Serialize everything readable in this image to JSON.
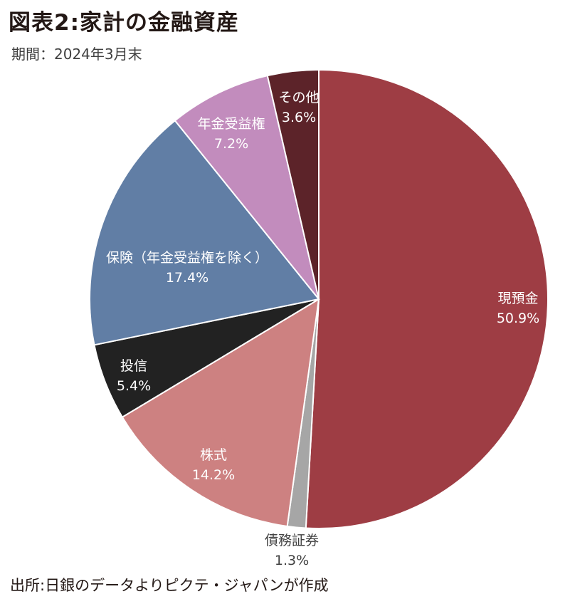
{
  "header": {
    "title": "図表2:家計の金融資産",
    "period": "期間：2024年3月末"
  },
  "footer": {
    "source": "出所:日銀のデータよりピクテ・ジャパンが作成"
  },
  "chart_data": {
    "type": "pie",
    "title": "図表2:家計の金融資産",
    "start": "12 o'clock",
    "direction": "clockwise",
    "slices": [
      {
        "name": "現預金",
        "label": "50.9%",
        "value": 50.9,
        "color": "#9e3d44",
        "text_color": "#ffffff"
      },
      {
        "name": "債務証券",
        "label": "1.3%",
        "value": 1.3,
        "color": "#a6a6a6",
        "text_color": "#404040"
      },
      {
        "name": "株式",
        "label": "14.2%",
        "value": 14.2,
        "color": "#cd8181",
        "text_color": "#ffffff"
      },
      {
        "name": "投信",
        "label": "5.4%",
        "value": 5.4,
        "color": "#222222",
        "text_color": "#ffffff"
      },
      {
        "name": "保険（年金受益権を除く）",
        "label": "17.4%",
        "value": 17.4,
        "color": "#617ea5",
        "text_color": "#ffffff"
      },
      {
        "name": "年金受益権",
        "label": "7.2%",
        "value": 7.2,
        "color": "#c28cbd",
        "text_color": "#ffffff"
      },
      {
        "name": "その他",
        "label": "3.6%",
        "value": 3.6,
        "color": "#5c2329",
        "text_color": "#ffffff"
      }
    ]
  }
}
